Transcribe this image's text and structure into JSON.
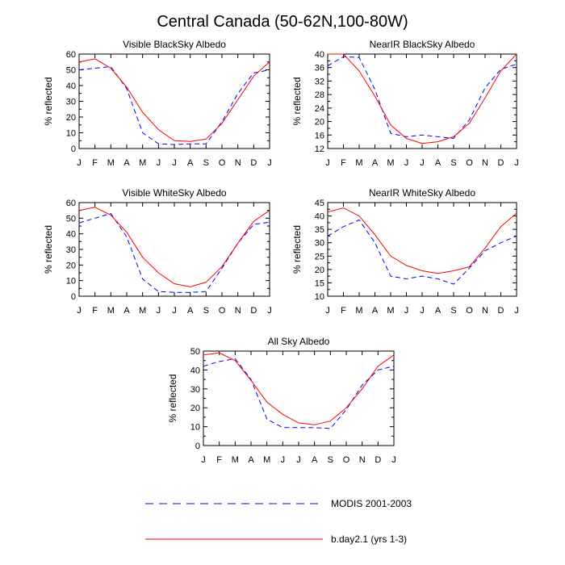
{
  "title": "Central Canada (50-62N,100-80W)",
  "legend": {
    "entries": [
      {
        "label": "MODIS 2001-2003",
        "color": "#0000ff",
        "dash": true
      },
      {
        "label": "b.day2.1 (yrs 1-3)",
        "color": "#ff0000",
        "dash": false
      }
    ]
  },
  "chart_data": [
    {
      "type": "line",
      "title": "Visible BlackSky Albedo",
      "ylabel": "% reflected",
      "categories": [
        "J",
        "F",
        "M",
        "A",
        "M",
        "J",
        "J",
        "A",
        "S",
        "O",
        "N",
        "D",
        "J"
      ],
      "ylim": [
        0,
        60
      ],
      "yticks": [
        0,
        10,
        20,
        30,
        40,
        50,
        60
      ],
      "series": [
        {
          "name": "MODIS 2001-2003",
          "color": "#0000ff",
          "dash": true,
          "values": [
            50,
            51,
            52,
            38,
            10,
            3,
            2.5,
            3,
            3,
            17,
            35,
            48,
            50
          ]
        },
        {
          "name": "b.day2.1 (yrs 1-3)",
          "color": "#ff0000",
          "dash": false,
          "values": [
            55,
            57,
            51,
            39,
            23,
            12,
            5,
            4.5,
            6,
            16,
            31,
            46,
            55
          ]
        }
      ]
    },
    {
      "type": "line",
      "title": "NearIR BlackSky Albedo",
      "ylabel": "% reflected",
      "categories": [
        "J",
        "F",
        "M",
        "A",
        "M",
        "J",
        "J",
        "A",
        "S",
        "O",
        "N",
        "D",
        "J"
      ],
      "ylim": [
        12,
        40
      ],
      "yticks": [
        12,
        16,
        20,
        24,
        28,
        32,
        36,
        40
      ],
      "series": [
        {
          "name": "MODIS 2001-2003",
          "color": "#0000ff",
          "dash": true,
          "values": [
            36.5,
            39.2,
            39,
            29.5,
            16.5,
            15.5,
            16,
            15.5,
            15,
            20.5,
            30,
            35.5,
            37
          ]
        },
        {
          "name": "b.day2.1 (yrs 1-3)",
          "color": "#ff0000",
          "dash": false,
          "values": [
            40,
            40,
            35,
            27.5,
            19,
            15,
            13.5,
            14,
            15.5,
            19.5,
            27,
            35,
            40
          ]
        }
      ]
    },
    {
      "type": "line",
      "title": "Visible WhiteSky Albedo",
      "ylabel": "% reflected",
      "categories": [
        "J",
        "F",
        "M",
        "A",
        "M",
        "J",
        "J",
        "A",
        "S",
        "O",
        "N",
        "D",
        "J"
      ],
      "ylim": [
        0,
        60
      ],
      "yticks": [
        0,
        10,
        20,
        30,
        40,
        50,
        60
      ],
      "series": [
        {
          "name": "MODIS 2001-2003",
          "color": "#0000ff",
          "dash": true,
          "values": [
            47,
            50,
            53,
            38,
            11,
            3,
            2.5,
            2.5,
            3,
            18,
            34,
            46,
            47.5
          ]
        },
        {
          "name": "b.day2.1 (yrs 1-3)",
          "color": "#ff0000",
          "dash": false,
          "values": [
            55,
            57,
            52,
            41,
            25,
            15,
            8,
            6,
            9,
            19,
            34,
            48,
            55
          ]
        }
      ]
    },
    {
      "type": "line",
      "title": "NearIR WhiteSky Albedo",
      "ylabel": "% reflected",
      "categories": [
        "J",
        "F",
        "M",
        "A",
        "M",
        "J",
        "J",
        "A",
        "S",
        "O",
        "N",
        "D",
        "J"
      ],
      "ylim": [
        10,
        45
      ],
      "yticks": [
        10,
        15,
        20,
        25,
        30,
        35,
        40,
        45
      ],
      "series": [
        {
          "name": "MODIS 2001-2003",
          "color": "#0000ff",
          "dash": true,
          "values": [
            32.5,
            36,
            38.5,
            30,
            17.5,
            16.5,
            17.5,
            16.5,
            14.5,
            20.5,
            27,
            30,
            32.5
          ]
        },
        {
          "name": "b.day2.1 (yrs 1-3)",
          "color": "#ff0000",
          "dash": false,
          "values": [
            41.5,
            43,
            40,
            33,
            25,
            21.5,
            19.5,
            18.5,
            19.5,
            21,
            28,
            36,
            41
          ]
        }
      ]
    },
    {
      "type": "line",
      "title": "All Sky Albedo",
      "ylabel": "% reflected",
      "categories": [
        "J",
        "F",
        "M",
        "A",
        "M",
        "J",
        "J",
        "A",
        "S",
        "O",
        "N",
        "D",
        "J"
      ],
      "ylim": [
        0,
        50
      ],
      "yticks": [
        0,
        10,
        20,
        30,
        40,
        50
      ],
      "series": [
        {
          "name": "MODIS 2001-2003",
          "color": "#0000ff",
          "dash": true,
          "values": [
            42,
            44.5,
            46,
            35,
            14,
            9.5,
            9.5,
            9.5,
            9,
            19,
            32,
            40,
            42
          ]
        },
        {
          "name": "b.day2.1 (yrs 1-3)",
          "color": "#ff0000",
          "dash": false,
          "values": [
            48,
            49,
            45,
            34.5,
            23,
            16.5,
            12,
            11,
            13,
            20,
            30,
            42,
            48
          ]
        }
      ]
    }
  ]
}
